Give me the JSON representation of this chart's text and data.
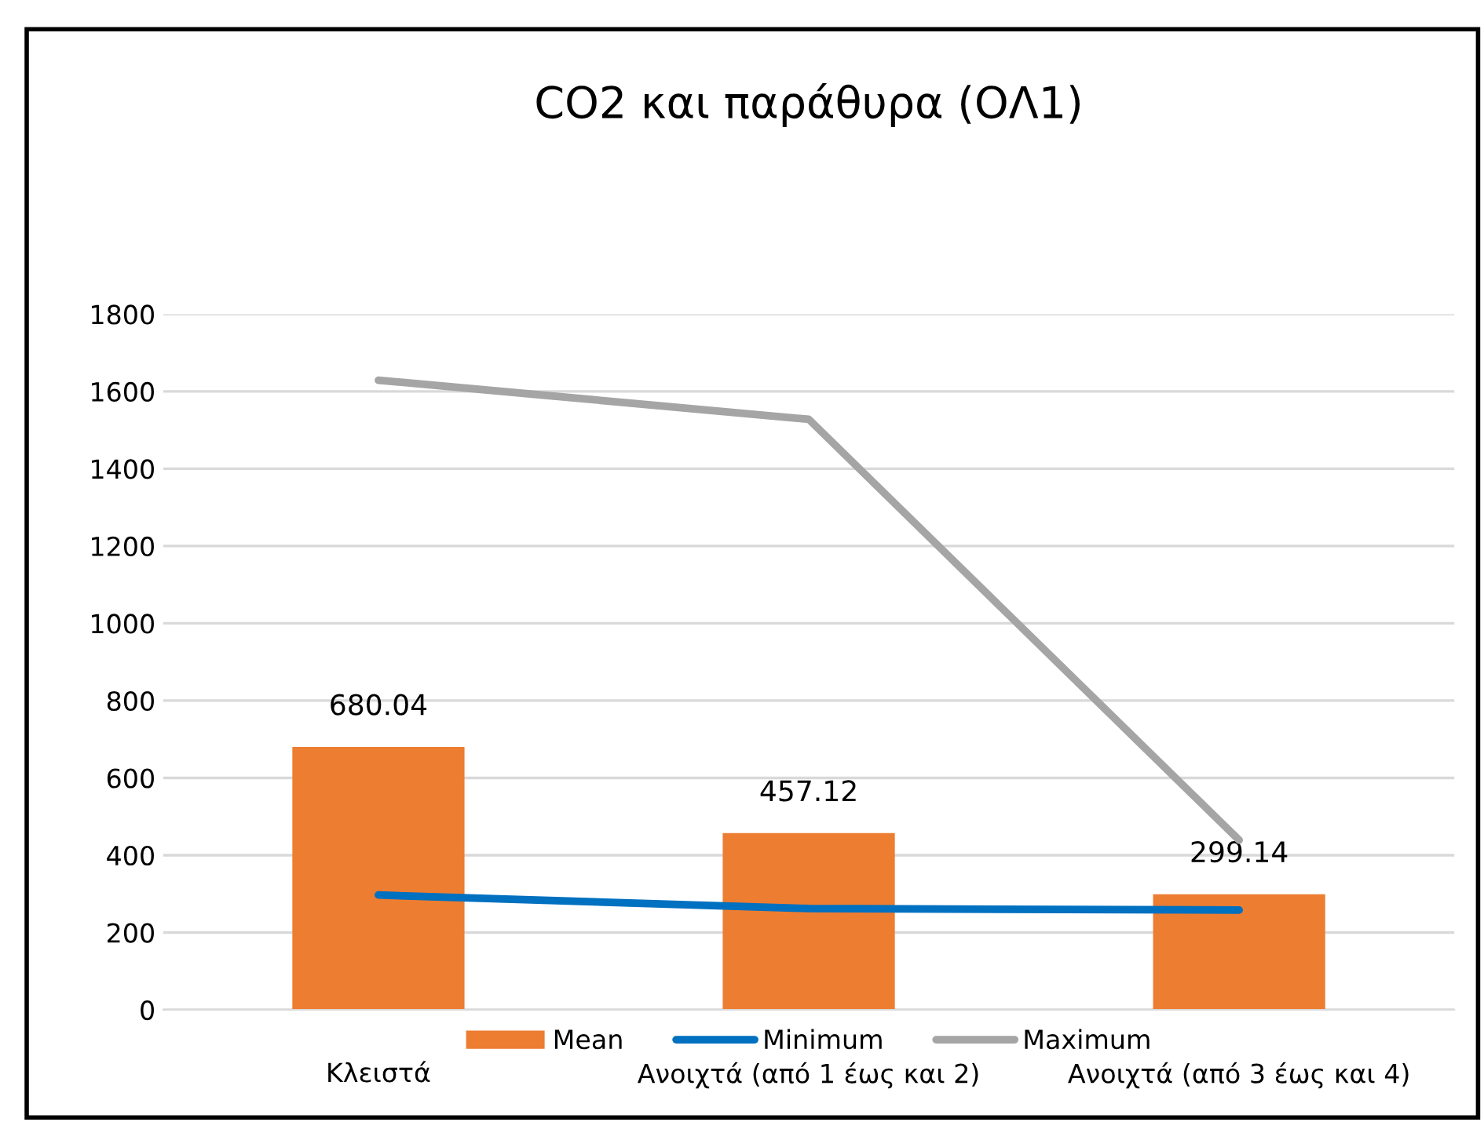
{
  "chart_data": {
    "type": "bar",
    "title": "CO2 και παράθυρα (ΟΛ1)",
    "categories": [
      "Κλειστά",
      "Ανοιχτά (από 1 έως και 2)",
      "Ανοιχτά (από 3 έως και 4)"
    ],
    "series": [
      {
        "name": "Mean",
        "color": "#ed7d31",
        "values": [
          680.04,
          457.12,
          299.14
        ],
        "data_labels": true
      },
      {
        "name": "Minimum",
        "type": "line",
        "color": "#0070c0",
        "values": [
          297,
          262,
          258
        ]
      },
      {
        "name": "Maximum",
        "type": "line",
        "color": "#a5a5a5",
        "values": [
          1629,
          1528,
          439
        ]
      }
    ],
    "ylim": [
      0,
      1800
    ],
    "yticks": [
      0,
      200,
      400,
      600,
      800,
      1000,
      1200,
      1400,
      1600,
      1800
    ],
    "grid": "y",
    "legend": "bottom",
    "marker": "none",
    "line_style": "solid"
  }
}
